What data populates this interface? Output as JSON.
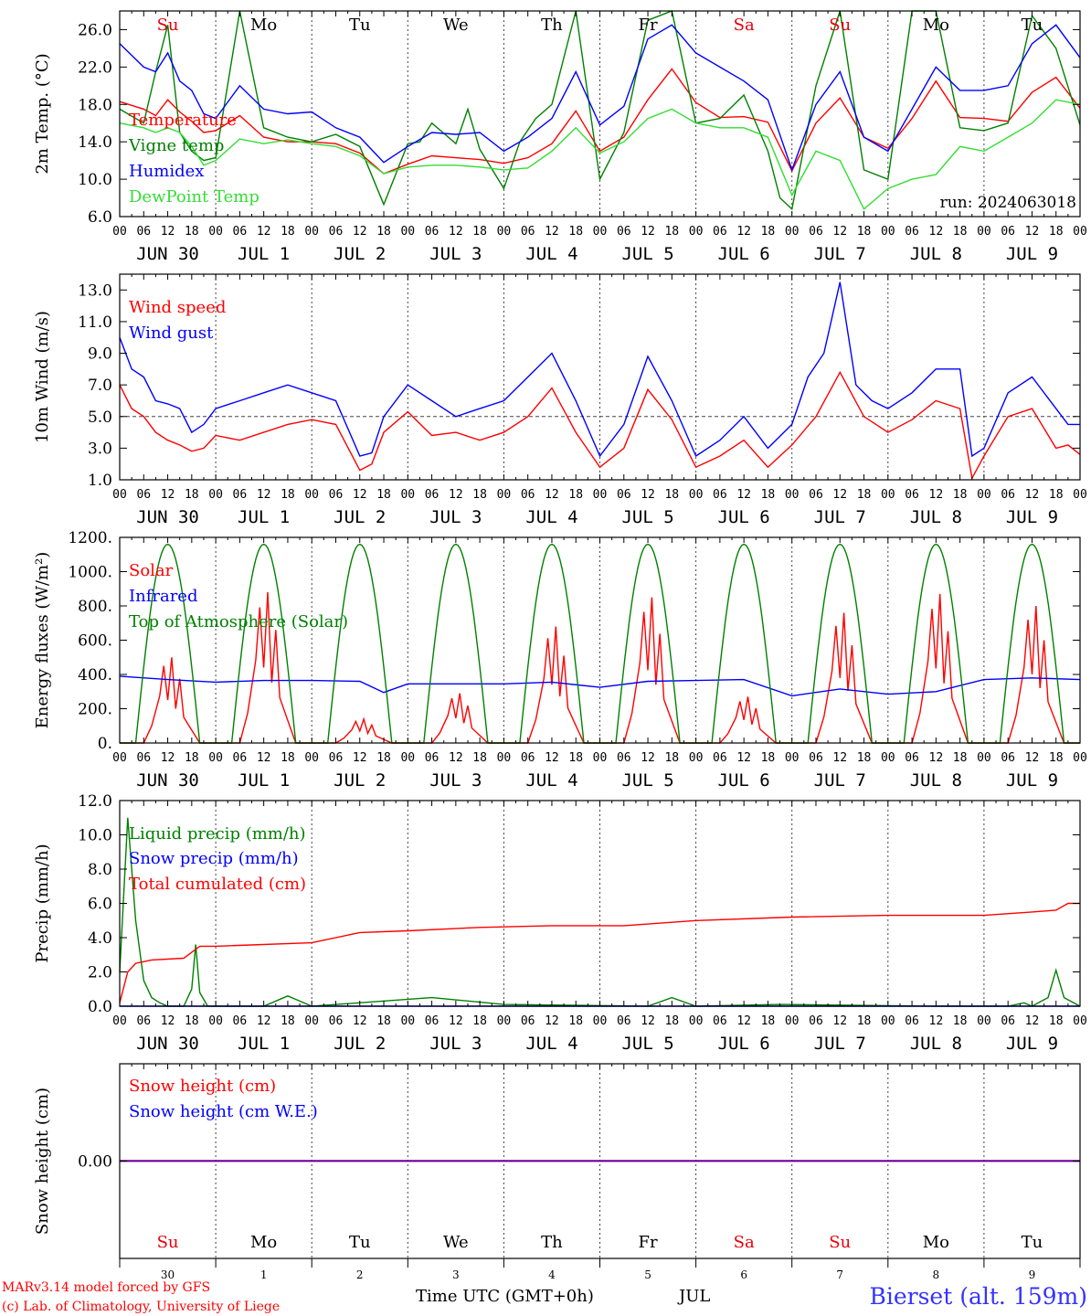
{
  "header": {
    "run_label": "run: 2024063018",
    "days": [
      "Su",
      "Mo",
      "Tu",
      "We",
      "Th",
      "Fr",
      "Sa",
      "Su",
      "Mo",
      "Tu"
    ],
    "weekend_color": "#e8000b"
  },
  "x_axis": {
    "hour_ticks": [
      "00",
      "06",
      "12",
      "18"
    ],
    "date_labels": [
      "JUN 30",
      "JUL  1",
      "JUL  2",
      "JUL  3",
      "JUL  4",
      "JUL  5",
      "JUL  6",
      "JUL  7",
      "JUL  8",
      "JUL  9"
    ],
    "bottom_day_numbers": [
      "30",
      "1",
      "2",
      "3",
      "4",
      "5",
      "6",
      "7",
      "8",
      "9"
    ],
    "month": "JUL",
    "time_label": "Time UTC (GMT+0h)"
  },
  "footer": {
    "model_line": "MARv3.14 model forced by GFS",
    "credit_line": "(c) Lab. of Climatology, University of Liege",
    "station": "Bierset (alt. 159m)"
  },
  "colors": {
    "red": "#ff0000",
    "dark_green": "#008000",
    "blue": "#0000ff",
    "light_green": "#33dd33",
    "purple": "#800080",
    "station_blue": "#3333ff"
  },
  "chart_data": [
    {
      "type": "line",
      "ylabel": "2m Temp. (°C)",
      "ylim": [
        6,
        28
      ],
      "yticks": [
        "6.0",
        "10.0",
        "14.0",
        "18.0",
        "22.0",
        "26.0"
      ],
      "x_unit": "hours from 2024-06-30 00 UTC",
      "series": [
        {
          "name": "Temperature",
          "color": "#ff0000",
          "x": [
            0,
            6,
            9,
            12,
            15,
            18,
            21,
            24,
            30,
            36,
            42,
            48,
            54,
            60,
            66,
            72,
            78,
            84,
            90,
            96,
            102,
            108,
            114,
            120,
            126,
            132,
            138,
            144,
            150,
            156,
            162,
            168,
            174,
            180,
            186,
            192,
            198,
            204,
            210,
            216,
            222,
            228,
            234,
            240
          ],
          "y": [
            18.3,
            17.5,
            16.8,
            18.5,
            17.2,
            16.2,
            15.0,
            15.2,
            16.8,
            14.5,
            14.0,
            14.0,
            13.8,
            12.8,
            10.6,
            11.6,
            12.5,
            12.3,
            12.1,
            11.7,
            12.3,
            13.8,
            17.3,
            13.0,
            14.5,
            18.5,
            21.8,
            18.2,
            16.6,
            16.7,
            16.1,
            10.9,
            16.0,
            18.7,
            14.5,
            13.3,
            16.5,
            20.5,
            16.6,
            16.5,
            16.2,
            19.3,
            20.9,
            17.6
          ]
        },
        {
          "name": "Vigne temp",
          "color": "#008000",
          "x": [
            0,
            6,
            9,
            12,
            15,
            18,
            21,
            24,
            30,
            36,
            42,
            48,
            54,
            60,
            66,
            72,
            75,
            78,
            84,
            87,
            90,
            96,
            100,
            104,
            108,
            114,
            120,
            126,
            132,
            138,
            144,
            150,
            156,
            162,
            165,
            168,
            174,
            180,
            186,
            192,
            198,
            204,
            210,
            216,
            222,
            228,
            234,
            240
          ],
          "y": [
            17.5,
            16.0,
            21.5,
            26.5,
            15.0,
            13.0,
            12.0,
            12.3,
            28.0,
            15.5,
            14.5,
            14.0,
            14.8,
            13.5,
            7.3,
            13.8,
            14.0,
            16.0,
            13.8,
            17.5,
            13.2,
            9.0,
            14.0,
            16.5,
            18.0,
            28.0,
            10.0,
            15.0,
            27.0,
            28.0,
            16.0,
            16.5,
            19.0,
            13.0,
            8.0,
            6.8,
            20.0,
            28.0,
            11.0,
            10.0,
            28.0,
            28.0,
            15.5,
            15.2,
            16.0,
            27.5,
            24.0,
            15.8
          ]
        },
        {
          "name": "Humidex",
          "color": "#0000ff",
          "x": [
            0,
            6,
            9,
            12,
            15,
            18,
            21,
            24,
            30,
            36,
            42,
            48,
            54,
            60,
            66,
            72,
            78,
            84,
            90,
            96,
            102,
            108,
            114,
            120,
            126,
            132,
            138,
            144,
            150,
            156,
            162,
            168,
            174,
            180,
            186,
            192,
            198,
            204,
            210,
            216,
            222,
            228,
            234,
            240
          ],
          "y": [
            24.5,
            22.0,
            21.5,
            23.5,
            20.5,
            19.5,
            17.0,
            16.5,
            20.0,
            17.5,
            17.0,
            17.2,
            15.5,
            14.5,
            11.8,
            13.5,
            15.0,
            14.8,
            15.0,
            13.0,
            14.5,
            16.5,
            21.5,
            15.8,
            17.8,
            25.0,
            26.5,
            23.5,
            22.0,
            20.5,
            18.5,
            11.0,
            18.0,
            21.5,
            14.5,
            13.0,
            17.5,
            22.0,
            19.5,
            19.5,
            20.0,
            24.5,
            26.5,
            23.0
          ]
        },
        {
          "name": "DewPoint Temp",
          "color": "#33dd33",
          "x": [
            0,
            6,
            9,
            12,
            15,
            18,
            21,
            24,
            30,
            36,
            42,
            48,
            54,
            60,
            66,
            72,
            78,
            84,
            90,
            96,
            102,
            108,
            114,
            120,
            126,
            132,
            138,
            144,
            150,
            156,
            162,
            168,
            174,
            180,
            186,
            192,
            198,
            204,
            210,
            216,
            222,
            228,
            234,
            240
          ],
          "y": [
            16.0,
            15.5,
            15.0,
            15.5,
            15.0,
            13.5,
            11.5,
            12.0,
            14.3,
            13.8,
            14.2,
            13.8,
            13.5,
            12.5,
            10.6,
            11.3,
            11.5,
            11.5,
            11.3,
            11.0,
            11.2,
            13.0,
            15.5,
            12.8,
            14.0,
            16.5,
            17.5,
            16.0,
            15.5,
            15.5,
            14.5,
            8.3,
            13.0,
            12.0,
            6.8,
            9.0,
            10.0,
            10.5,
            13.5,
            13.0,
            14.5,
            16.0,
            18.5,
            18.0
          ]
        }
      ]
    },
    {
      "type": "line",
      "ylabel": "10m Wind (m/s)",
      "ylim": [
        1,
        14
      ],
      "yticks": [
        "1.0",
        "3.0",
        "5.0",
        "7.0",
        "9.0",
        "11.0",
        "13.0"
      ],
      "reference_line": 5,
      "series": [
        {
          "name": "Wind speed",
          "color": "#ff0000",
          "x": [
            0,
            3,
            6,
            9,
            12,
            15,
            18,
            21,
            24,
            30,
            36,
            42,
            48,
            54,
            60,
            63,
            66,
            72,
            78,
            84,
            90,
            96,
            102,
            108,
            114,
            120,
            126,
            132,
            138,
            144,
            150,
            156,
            162,
            168,
            174,
            180,
            186,
            192,
            198,
            204,
            210,
            213,
            216,
            222,
            228,
            234,
            237,
            240
          ],
          "y": [
            7.0,
            5.5,
            5.0,
            4.0,
            3.5,
            3.2,
            2.8,
            3.0,
            3.8,
            3.5,
            4.0,
            4.5,
            4.8,
            4.5,
            1.6,
            2.0,
            4.0,
            5.3,
            3.8,
            4.0,
            3.5,
            4.0,
            5.0,
            6.8,
            4.0,
            1.8,
            3.0,
            6.7,
            4.8,
            1.8,
            2.5,
            3.5,
            1.8,
            3.2,
            5.0,
            7.8,
            5.0,
            4.0,
            4.8,
            6.0,
            5.5,
            1.1,
            2.5,
            5.0,
            5.5,
            3.0,
            3.2,
            2.6
          ]
        },
        {
          "name": "Wind gust",
          "color": "#0000ff",
          "x": [
            0,
            3,
            6,
            9,
            12,
            15,
            18,
            21,
            24,
            30,
            36,
            42,
            48,
            54,
            60,
            63,
            66,
            72,
            78,
            84,
            90,
            96,
            102,
            108,
            114,
            120,
            126,
            132,
            138,
            144,
            150,
            156,
            162,
            168,
            172,
            176,
            180,
            184,
            188,
            192,
            198,
            204,
            210,
            213,
            216,
            222,
            228,
            234,
            237,
            240
          ],
          "y": [
            10.0,
            8.0,
            7.5,
            6.0,
            5.8,
            5.5,
            4.0,
            4.5,
            5.5,
            6.0,
            6.5,
            7.0,
            6.5,
            6.0,
            2.5,
            2.7,
            5.0,
            7.0,
            6.0,
            5.0,
            5.5,
            6.0,
            7.5,
            9.0,
            6.0,
            2.5,
            4.5,
            8.8,
            6.0,
            2.5,
            3.5,
            5.0,
            3.0,
            4.5,
            7.5,
            9.0,
            13.5,
            7.0,
            6.0,
            5.5,
            6.5,
            8.0,
            8.0,
            2.5,
            3.0,
            6.5,
            7.5,
            5.5,
            4.5,
            4.5
          ]
        }
      ]
    },
    {
      "type": "line",
      "ylabel": "Energy fluxes (W/m²)",
      "ylim": [
        0,
        1200
      ],
      "yticks": [
        "0.",
        "200.",
        "400.",
        "600.",
        "800.",
        "1000.",
        "1200."
      ],
      "series": [
        {
          "name": "Solar",
          "color": "#ff0000",
          "day_peaks_w_m2": [
            500,
            880,
            140,
            290,
            680,
            850,
            270,
            760,
            870,
            800
          ]
        },
        {
          "name": "Infrared",
          "color": "#0000ff",
          "x": [
            0,
            12,
            24,
            36,
            48,
            60,
            66,
            72,
            84,
            96,
            108,
            120,
            132,
            144,
            156,
            168,
            180,
            192,
            204,
            216,
            228,
            240
          ],
          "y": [
            390,
            370,
            355,
            365,
            365,
            360,
            295,
            345,
            345,
            345,
            355,
            325,
            360,
            365,
            370,
            275,
            315,
            285,
            300,
            370,
            380,
            370
          ]
        },
        {
          "name": "Top of Atmosphere (Solar)",
          "color": "#008000",
          "daily_peak_w_m2": 1160,
          "daylight_hours_utc": [
            4,
            20
          ]
        }
      ]
    },
    {
      "type": "line",
      "ylabel": "Precip (mm/h)",
      "ylim": [
        0,
        12
      ],
      "yticks": [
        "0.0",
        "2.0",
        "4.0",
        "6.0",
        "8.0",
        "10.0",
        "12.0"
      ],
      "series": [
        {
          "name": "Liquid precip (mm/h)",
          "color": "#008000",
          "x": [
            0,
            2,
            4,
            6,
            8,
            10,
            12,
            16,
            18,
            19,
            20,
            22,
            24,
            36,
            42,
            44,
            48,
            78,
            96,
            132,
            138,
            144,
            165,
            204,
            213,
            222,
            226,
            228,
            232,
            234,
            236,
            240
          ],
          "y": [
            2.0,
            11.0,
            5.0,
            1.5,
            0.5,
            0.2,
            0.0,
            0.0,
            1.0,
            3.6,
            0.8,
            0.0,
            0.0,
            0.0,
            0.6,
            0.4,
            0.0,
            0.5,
            0.1,
            0.0,
            0.5,
            0.0,
            0.1,
            0.0,
            0.0,
            0.0,
            0.2,
            0.0,
            0.5,
            2.1,
            0.5,
            0.0
          ]
        },
        {
          "name": "Snow precip (mm/h)",
          "color": "#0000ff",
          "x": [
            0,
            240
          ],
          "y": [
            0,
            0
          ]
        },
        {
          "name": "Total cumulated (cm)",
          "color": "#ff0000",
          "x": [
            0,
            2,
            4,
            8,
            16,
            20,
            24,
            48,
            60,
            72,
            90,
            108,
            126,
            144,
            168,
            192,
            216,
            228,
            234,
            237,
            240
          ],
          "y": [
            0.2,
            2.0,
            2.5,
            2.7,
            2.8,
            3.5,
            3.5,
            3.7,
            4.3,
            4.4,
            4.6,
            4.7,
            4.7,
            5.0,
            5.2,
            5.3,
            5.3,
            5.5,
            5.6,
            6.0,
            6.0
          ]
        }
      ]
    },
    {
      "type": "line",
      "ylabel": "Snow height (cm)",
      "yticks": [
        "0.00"
      ],
      "series": [
        {
          "name": "Snow height (cm)",
          "color": "#ff0000",
          "x": [
            0,
            240
          ],
          "y": [
            0,
            0
          ]
        },
        {
          "name": "Snow height (cm W.E.)",
          "color": "#0000ff",
          "x": [
            0,
            240
          ],
          "y": [
            0,
            0
          ]
        }
      ]
    }
  ]
}
